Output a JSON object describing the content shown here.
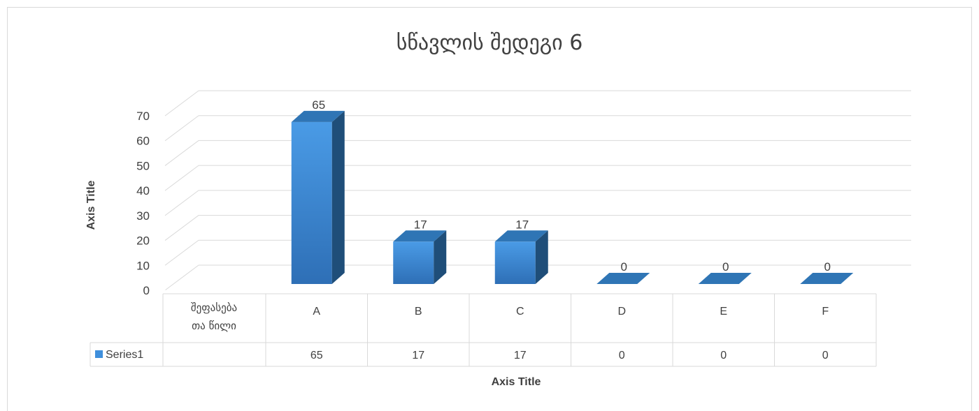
{
  "chart_data": {
    "type": "bar",
    "title": "სწავლის შედეგი 6",
    "xlabel": "Axis Title",
    "ylabel": "Axis Title",
    "categories": [
      "A",
      "B",
      "C",
      "D",
      "E",
      "F"
    ],
    "series": [
      {
        "name": "Series1",
        "values": [
          65,
          17,
          17,
          0,
          0,
          0
        ]
      }
    ],
    "ylim": [
      0,
      70
    ],
    "yticks": [
      "0",
      "10",
      "20",
      "30",
      "40",
      "50",
      "60",
      "70"
    ],
    "data_labels": [
      "65",
      "17",
      "17",
      "0",
      "0",
      "0"
    ],
    "table_header_label": [
      "შეფასება",
      "თა წილი"
    ],
    "grid": true,
    "three_d": true,
    "colors": {
      "bar_front": "#3f8fdc",
      "bar_side": "#1f4e79",
      "bar_top": "#2f75b5",
      "grid": "#d9d9d9",
      "text": "#404040"
    }
  }
}
